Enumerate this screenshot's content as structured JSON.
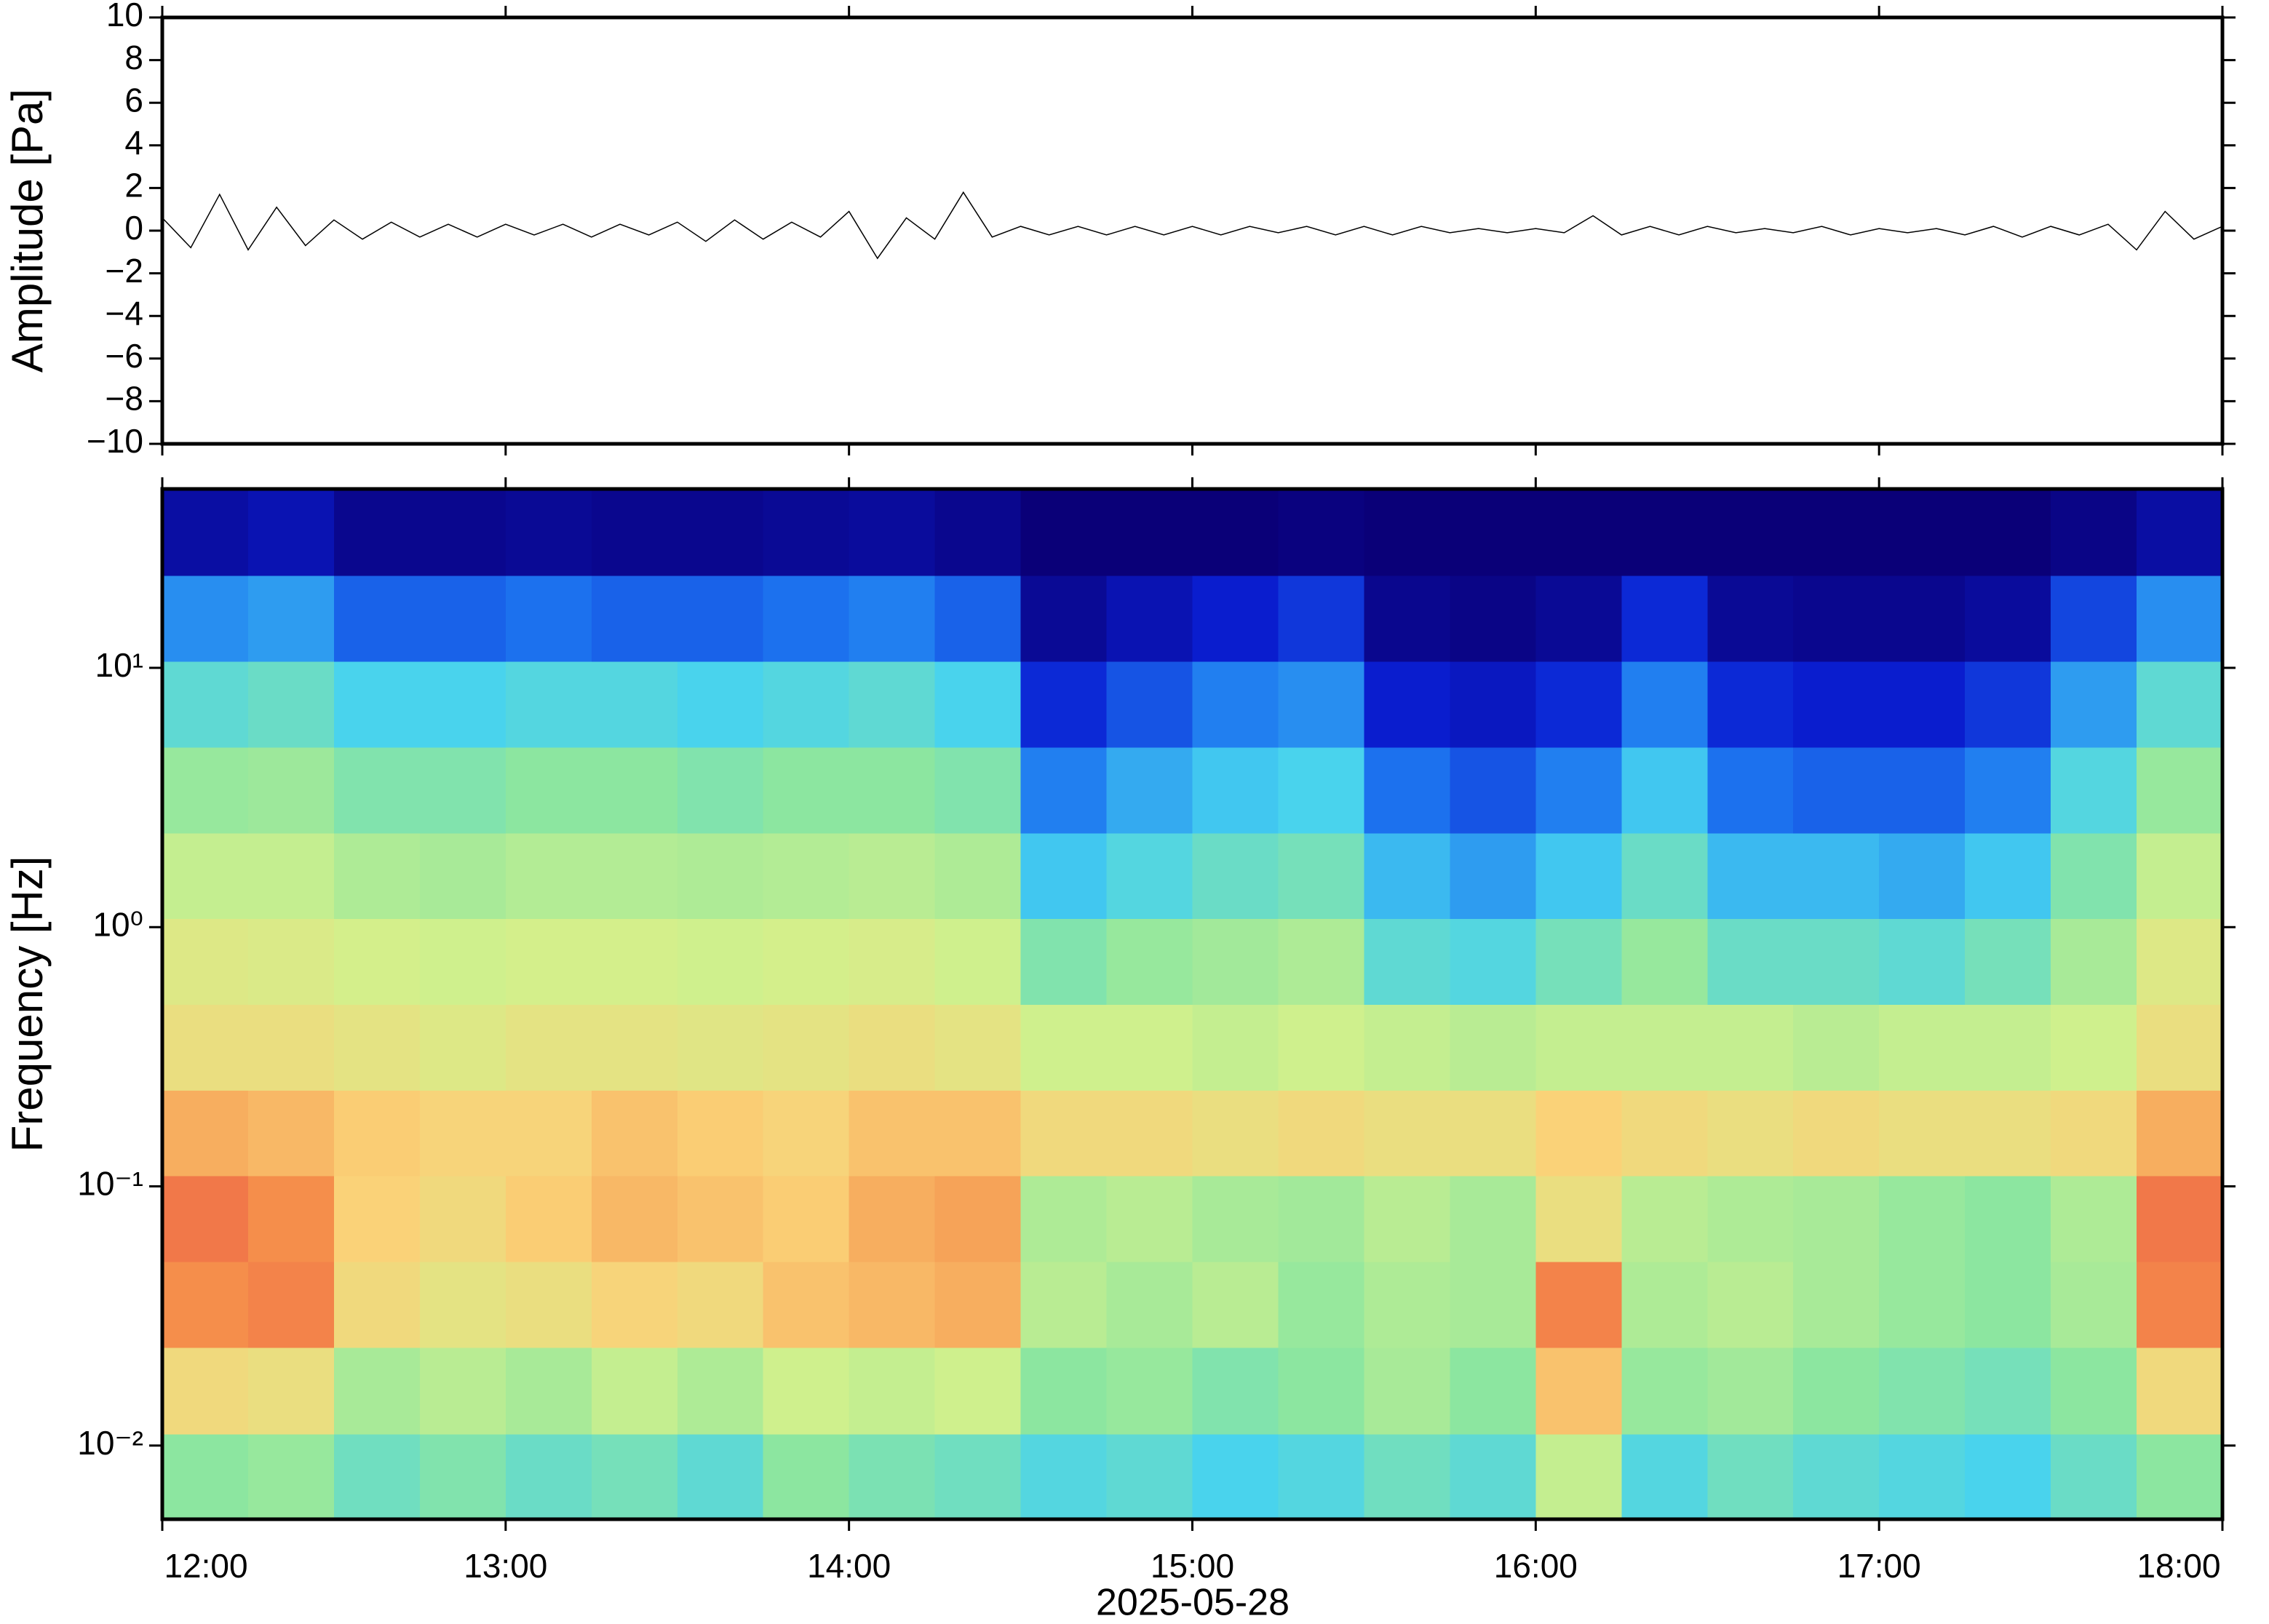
{
  "chart_data": [
    {
      "type": "line",
      "ylabel": "Amplitude [Pa]",
      "xlim": [
        12,
        18
      ],
      "ylim": [
        -10,
        10
      ],
      "yticks": [
        {
          "value": -10,
          "label": "−10"
        },
        {
          "value": -8,
          "label": "−8"
        },
        {
          "value": -6,
          "label": "−6"
        },
        {
          "value": -4,
          "label": "−4"
        },
        {
          "value": -2,
          "label": "−2"
        },
        0,
        2,
        4,
        6,
        8,
        10
      ],
      "color": "#000000",
      "x": [
        12,
        12.083,
        12.167,
        12.25,
        12.333,
        12.417,
        12.5,
        12.583,
        12.667,
        12.75,
        12.833,
        12.917,
        13,
        13.083,
        13.167,
        13.25,
        13.333,
        13.417,
        13.5,
        13.583,
        13.667,
        13.75,
        13.833,
        13.917,
        14,
        14.083,
        14.167,
        14.25,
        14.333,
        14.417,
        14.5,
        14.583,
        14.667,
        14.75,
        14.833,
        14.917,
        15,
        15.083,
        15.167,
        15.25,
        15.333,
        15.417,
        15.5,
        15.583,
        15.667,
        15.75,
        15.833,
        15.917,
        16,
        16.083,
        16.167,
        16.25,
        16.333,
        16.417,
        16.5,
        16.583,
        16.667,
        16.75,
        16.833,
        16.917,
        17,
        17.083,
        17.167,
        17.25,
        17.333,
        17.417,
        17.5,
        17.583,
        17.667,
        17.75,
        17.833,
        17.917,
        18
      ],
      "values": [
        0.6,
        -0.8,
        1.7,
        -0.9,
        1.1,
        -0.7,
        0.5,
        -0.4,
        0.4,
        -0.3,
        0.3,
        -0.3,
        0.3,
        -0.2,
        0.3,
        -0.3,
        0.3,
        -0.2,
        0.4,
        -0.5,
        0.5,
        -0.4,
        0.4,
        -0.3,
        0.9,
        -1.3,
        0.6,
        -0.4,
        1.8,
        -0.3,
        0.2,
        -0.2,
        0.2,
        -0.2,
        0.2,
        -0.2,
        0.2,
        -0.2,
        0.2,
        -0.1,
        0.2,
        -0.2,
        0.2,
        -0.2,
        0.2,
        -0.1,
        0.1,
        -0.1,
        0.1,
        -0.1,
        0.7,
        -0.2,
        0.2,
        -0.2,
        0.2,
        -0.1,
        0.1,
        -0.1,
        0.2,
        -0.2,
        0.1,
        -0.1,
        0.1,
        -0.2,
        0.2,
        -0.3,
        0.2,
        -0.2,
        0.3,
        -0.9,
        0.9,
        -0.4,
        0.2
      ]
    },
    {
      "type": "heatmap",
      "ylabel": "Frequency [Hz]",
      "xlabel": "2025-05-28",
      "log_y": true,
      "xlim": [
        12,
        18
      ],
      "ylim": [
        0.0052,
        49
      ],
      "xticks": [
        {
          "value": 12,
          "label": "12:00"
        },
        {
          "value": 13,
          "label": "13:00"
        },
        {
          "value": 14,
          "label": "14:00"
        },
        {
          "value": 15,
          "label": "15:00"
        },
        {
          "value": 16,
          "label": "16:00"
        },
        {
          "value": 17,
          "label": "17:00"
        },
        {
          "value": 18,
          "label": "18:00"
        }
      ],
      "yticks": [
        {
          "value": 0.01,
          "label": "10⁻²"
        },
        {
          "value": 0.1,
          "label": "10⁻¹"
        },
        {
          "value": 1,
          "label": "10⁰"
        },
        {
          "value": 10,
          "label": "10¹"
        }
      ],
      "x_bins": [
        12,
        12.25,
        12.5,
        12.75,
        13,
        13.25,
        13.5,
        13.75,
        14,
        14.25,
        14.5,
        14.75,
        15,
        15.25,
        15.5,
        15.75,
        16,
        16.25,
        16.5,
        16.75,
        17,
        17.25,
        17.5,
        17.75,
        18
      ],
      "y_bins": [
        0.0052,
        0.0111,
        0.0239,
        0.0512,
        0.11,
        0.235,
        0.504,
        1.08,
        2.31,
        4.95,
        10.6,
        22.7,
        48.8
      ],
      "zlim": [
        0,
        100
      ],
      "colors": [
        "#0a0078",
        "#0a1ed2",
        "#1e78f0",
        "#46d2f0",
        "#8ce6a0",
        "#d2f08c",
        "#fad278",
        "#f5914b",
        "#eb4b46"
      ],
      "z": [
        [
          50,
          52,
          45,
          48,
          44,
          46,
          42,
          50,
          47,
          45,
          40,
          42,
          38,
          40,
          45,
          42,
          60,
          40,
          45,
          42,
          40,
          38,
          44,
          50
        ],
        [
          72,
          70,
          55,
          58,
          55,
          60,
          56,
          62,
          60,
          62,
          50,
          52,
          48,
          50,
          55,
          50,
          78,
          52,
          54,
          50,
          48,
          46,
          50,
          72
        ],
        [
          88,
          90,
          72,
          68,
          70,
          74,
          72,
          78,
          80,
          82,
          58,
          55,
          58,
          52,
          56,
          55,
          90,
          56,
          58,
          55,
          52,
          50,
          55,
          90
        ],
        [
          92,
          88,
          75,
          72,
          76,
          80,
          78,
          76,
          82,
          84,
          56,
          58,
          55,
          54,
          58,
          55,
          70,
          58,
          56,
          55,
          52,
          50,
          56,
          92
        ],
        [
          82,
          80,
          76,
          74,
          74,
          78,
          76,
          74,
          78,
          78,
          72,
          72,
          70,
          72,
          70,
          70,
          75,
          72,
          70,
          72,
          70,
          70,
          72,
          82
        ],
        [
          70,
          70,
          68,
          66,
          68,
          68,
          67,
          68,
          70,
          68,
          62,
          62,
          60,
          62,
          60,
          58,
          60,
          60,
          60,
          58,
          60,
          60,
          62,
          70
        ],
        [
          66,
          65,
          63,
          62,
          63,
          63,
          62,
          63,
          64,
          62,
          48,
          52,
          54,
          56,
          42,
          40,
          46,
          52,
          44,
          44,
          42,
          46,
          55,
          66
        ],
        [
          60,
          60,
          56,
          55,
          57,
          57,
          56,
          57,
          58,
          56,
          36,
          40,
          44,
          46,
          34,
          30,
          36,
          44,
          34,
          34,
          32,
          36,
          48,
          60
        ],
        [
          52,
          53,
          48,
          48,
          50,
          50,
          48,
          50,
          50,
          48,
          26,
          32,
          36,
          38,
          24,
          20,
          26,
          36,
          24,
          22,
          22,
          26,
          40,
          52
        ],
        [
          42,
          44,
          38,
          38,
          40,
          40,
          38,
          40,
          42,
          38,
          14,
          20,
          26,
          28,
          12,
          10,
          14,
          26,
          14,
          12,
          12,
          16,
          30,
          42
        ],
        [
          28,
          30,
          22,
          22,
          24,
          22,
          22,
          24,
          26,
          22,
          4,
          8,
          12,
          16,
          3,
          2,
          4,
          14,
          4,
          3,
          3,
          5,
          18,
          28
        ],
        [
          6,
          8,
          3,
          3,
          4,
          3,
          3,
          4,
          5,
          3,
          0,
          0,
          0,
          1,
          0,
          0,
          0,
          0,
          0,
          0,
          0,
          0,
          2,
          6
        ]
      ]
    }
  ]
}
